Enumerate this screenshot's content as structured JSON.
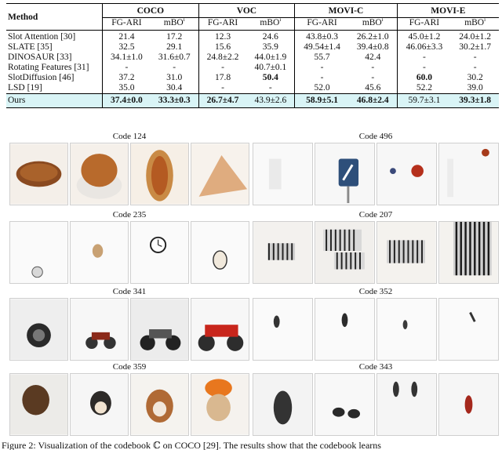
{
  "table": {
    "method_header": "Method",
    "groups": [
      "COCO",
      "VOC",
      "MOVI-C",
      "MOVI-E"
    ],
    "metrics": [
      "FG-ARI",
      "mBO"
    ],
    "metric_sup": "i",
    "rows": [
      {
        "method": "Slot Attention [30]",
        "cells": [
          "21.4",
          "17.2",
          "12.3",
          "24.6",
          "43.8±0.3",
          "26.2±1.0",
          "45.0±1.2",
          "24.0±1.2"
        ]
      },
      {
        "method": "SLATE [35]",
        "cells": [
          "32.5",
          "29.1",
          "15.6",
          "35.9",
          "49.54±1.4",
          "39.4±0.8",
          "46.06±3.3",
          "30.2±1.7"
        ]
      },
      {
        "method": "DINOSAUR [33]",
        "cells": [
          "34.1±1.0",
          "31.6±0.7",
          "24.8±2.2",
          "44.0±1.9",
          "55.7",
          "42.4",
          "-",
          "-"
        ]
      },
      {
        "method": "Rotating Features [31]",
        "cells": [
          "-",
          "-",
          "-",
          "40.7±0.1",
          "-",
          "-",
          "-",
          "-"
        ]
      },
      {
        "method": "SlotDiffusion [46]",
        "cells": [
          "37.2",
          "31.0",
          "17.8",
          "50.4",
          "-",
          "-",
          "60.0",
          "30.2"
        ]
      },
      {
        "method": "LSD [19]",
        "cells": [
          "35.0",
          "30.4",
          "-",
          "-",
          "52.0",
          "45.6",
          "52.2",
          "39.0"
        ]
      }
    ],
    "ours": {
      "method": "Ours",
      "cells": [
        "37.4±0.0",
        "33.3±0.3",
        "26.7±4.7",
        "43.9±2.6",
        "58.9±5.1",
        "46.8±2.4",
        "59.7±3.1",
        "39.3±1.8"
      ]
    }
  },
  "codes": [
    {
      "title": "Code 124"
    },
    {
      "title": "Code 496"
    },
    {
      "title": "Code 235"
    },
    {
      "title": "Code 207"
    },
    {
      "title": "Code 341"
    },
    {
      "title": "Code 352"
    },
    {
      "title": "Code 359"
    },
    {
      "title": "Code 343"
    }
  ],
  "caption": "Figure 2: Visualization of the codebook ℂ on COCO [29]. The results show that the codebook learns"
}
